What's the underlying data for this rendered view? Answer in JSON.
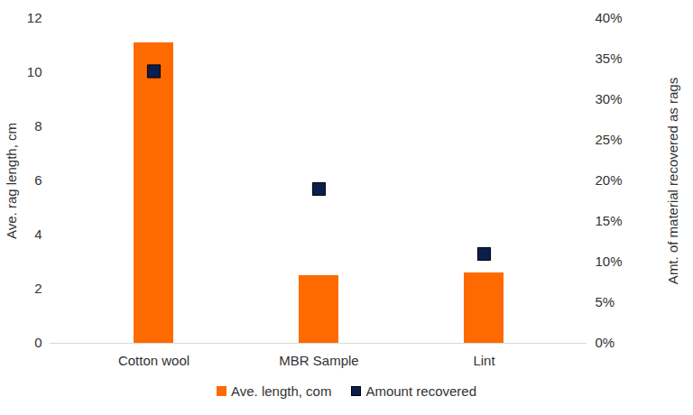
{
  "chart_data": {
    "type": "bar",
    "categories": [
      "Cotton wool",
      "MBR Sample",
      "Lint"
    ],
    "series": [
      {
        "name": "Ave. length, com",
        "type": "bar",
        "color": "#ff6a00",
        "values": [
          11.1,
          2.5,
          2.6
        ]
      },
      {
        "name": "Amount recovered",
        "type": "scatter",
        "marker": "square",
        "color": "#0b1f4d",
        "axis": "y2",
        "values": [
          33.5,
          19,
          11
        ]
      }
    ],
    "y_label": "Ave. rag length, cm",
    "y2_label": "Amt. of material recovered as rags",
    "ylim": [
      0,
      12
    ],
    "yticks": [
      0,
      2,
      4,
      6,
      8,
      10,
      12
    ],
    "y2lim": [
      0,
      40
    ],
    "y2ticks": [
      {
        "value": 0,
        "label": "0%"
      },
      {
        "value": 5,
        "label": "5%"
      },
      {
        "value": 10,
        "label": "10%"
      },
      {
        "value": 15,
        "label": "15%"
      },
      {
        "value": 20,
        "label": "20%"
      },
      {
        "value": 25,
        "label": "25%"
      },
      {
        "value": 30,
        "label": "30%"
      },
      {
        "value": 35,
        "label": "35%"
      },
      {
        "value": 40,
        "label": "40%"
      }
    ],
    "legend": "bottom"
  }
}
